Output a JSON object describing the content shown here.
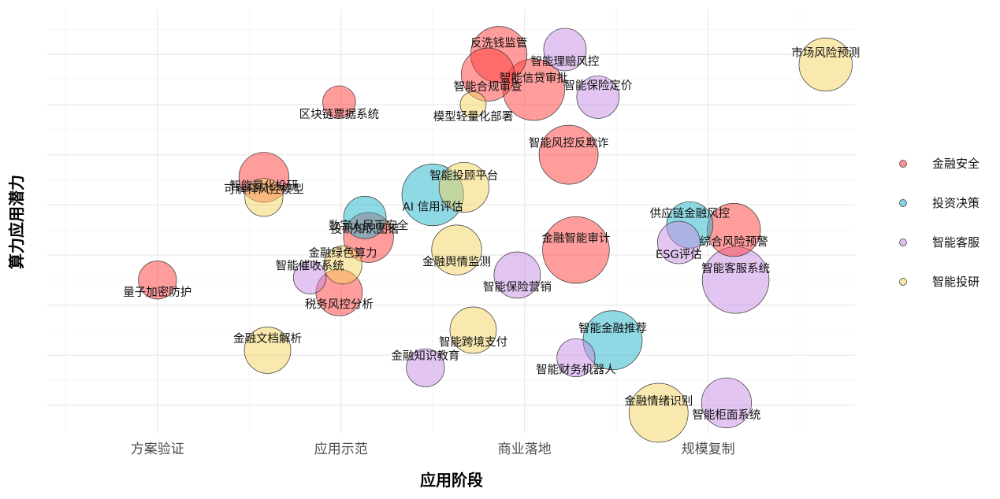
{
  "chart_data": {
    "type": "scatter",
    "title": "",
    "xlabel": "应用阶段",
    "ylabel": "算力应用潜力",
    "x_categories": [
      "方案验证",
      "应用示范",
      "商业落地",
      "规模复制"
    ],
    "xlim": [
      0.4,
      4.8
    ],
    "ylim": [
      0.45,
      8.9
    ],
    "grid": true,
    "legend_position": "right",
    "colors": {
      "金融安全": "#ff3b3b",
      "投资决策": "#1fb3c9",
      "智能客服": "#c58ee3",
      "智能投研": "#f5d460"
    },
    "legend": [
      "金融安全",
      "投资决策",
      "智能客服",
      "智能投研"
    ],
    "points": [
      {
        "label": "反洗钱监管",
        "category": "金融安全",
        "x": 2.86,
        "y": 8.0,
        "size": 8
      },
      {
        "label": "智能理赔风控",
        "category": "智能客服",
        "x": 3.22,
        "y": 8.1,
        "size": 4
      },
      {
        "label": "市场风险预测",
        "category": "智能投研",
        "x": 4.64,
        "y": 7.8,
        "size": 7
      },
      {
        "label": "智能合规审查",
        "category": "金融安全",
        "x": 2.8,
        "y": 7.6,
        "size": 7
      },
      {
        "label": "智能信贷审批",
        "category": "金融安全",
        "x": 3.05,
        "y": 7.3,
        "size": 10
      },
      {
        "label": "区块链票据系统",
        "category": "金融安全",
        "x": 1.99,
        "y": 7.05,
        "size": 2
      },
      {
        "label": "智能保险定价",
        "category": "智能客服",
        "x": 3.4,
        "y": 7.15,
        "size": 4
      },
      {
        "label": "模型轻量化部署",
        "category": "智能投研",
        "x": 2.72,
        "y": 7.0,
        "size": 1
      },
      {
        "label": "智能风控反欺诈",
        "category": "金融安全",
        "x": 3.24,
        "y": 6.0,
        "size": 9
      },
      {
        "label": "可解释风控模型",
        "category": "金融安全",
        "x": 1.58,
        "y": 5.55,
        "size": 6
      },
      {
        "label": "智能投顾平台",
        "category": "智能投研",
        "x": 2.67,
        "y": 5.35,
        "size": 6
      },
      {
        "label": "AI 信用评估",
        "category": "投资决策",
        "x": 2.5,
        "y": 5.2,
        "size": 10
      },
      {
        "label": "智能量化投研",
        "category": "智能投研",
        "x": 1.58,
        "y": 5.15,
        "size": 3
      },
      {
        "label": "投研知识图谱",
        "category": "投资决策",
        "x": 2.13,
        "y": 4.75,
        "size": 4
      },
      {
        "label": "供应链金融风控",
        "category": "投资决策",
        "x": 3.9,
        "y": 4.6,
        "size": 5
      },
      {
        "label": "综合风险预警",
        "category": "金融安全",
        "x": 4.14,
        "y": 4.5,
        "size": 7
      },
      {
        "label": "数字人民币安全",
        "category": "金融安全",
        "x": 2.15,
        "y": 4.35,
        "size": 6
      },
      {
        "label": "ESG评估",
        "category": "智能客服",
        "x": 3.84,
        "y": 4.25,
        "size": 4
      },
      {
        "label": "金融智能审计",
        "category": "金融安全",
        "x": 3.28,
        "y": 4.1,
        "size": 12
      },
      {
        "label": "金融舆情监测",
        "category": "智能投研",
        "x": 2.63,
        "y": 4.1,
        "size": 6
      },
      {
        "label": "金融绿色算力",
        "category": "智能投研",
        "x": 2.01,
        "y": 3.8,
        "size": 3
      },
      {
        "label": "智能保险营销",
        "category": "智能客服",
        "x": 2.96,
        "y": 3.6,
        "size": 5
      },
      {
        "label": "智能客服系统",
        "category": "智能客服",
        "x": 4.15,
        "y": 3.5,
        "size": 12
      },
      {
        "label": "量子加密防护",
        "category": "金融安全",
        "x": 1.0,
        "y": 3.5,
        "size": 3
      },
      {
        "label": "智能催收系统",
        "category": "智能客服",
        "x": 1.83,
        "y": 3.55,
        "size": 2
      },
      {
        "label": "税务风控分析",
        "category": "金融安全",
        "x": 1.99,
        "y": 3.25,
        "size": 5
      },
      {
        "label": "智能金融推荐",
        "category": "投资决策",
        "x": 3.48,
        "y": 2.3,
        "size": 9
      },
      {
        "label": "智能跨境支付",
        "category": "智能投研",
        "x": 2.72,
        "y": 2.5,
        "size": 5
      },
      {
        "label": "金融文档解析",
        "category": "智能投研",
        "x": 1.6,
        "y": 2.1,
        "size": 5
      },
      {
        "label": "智能财务机器人",
        "category": "智能客服",
        "x": 3.28,
        "y": 1.95,
        "size": 3
      },
      {
        "label": "金融知识教育",
        "category": "智能客服",
        "x": 2.46,
        "y": 1.75,
        "size": 3
      },
      {
        "label": "智能柜面系统",
        "category": "智能客服",
        "x": 4.1,
        "y": 1.05,
        "size": 6
      },
      {
        "label": "金融情绪识别",
        "category": "智能投研",
        "x": 3.73,
        "y": 0.85,
        "size": 9
      }
    ]
  }
}
